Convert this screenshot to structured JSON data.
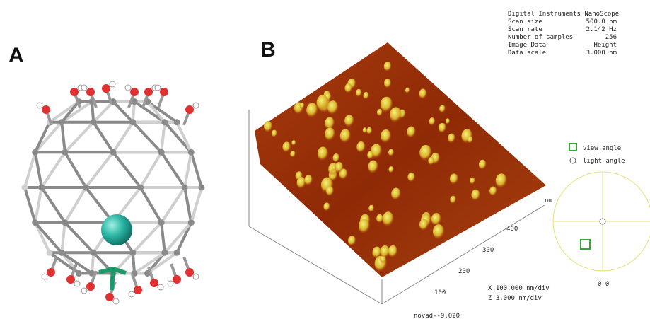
{
  "panel_a": {
    "label": "A"
  },
  "panel_b": {
    "label": "B",
    "info": {
      "title": "Digital Instruments NanoScope",
      "rows": [
        [
          "Scan size",
          "500.0 nm"
        ],
        [
          "Scan rate",
          "2.142 Hz"
        ],
        [
          "Number of samples",
          "256"
        ],
        [
          "Image Data",
          "Height"
        ],
        [
          "Data scale",
          "3.000 nm"
        ]
      ]
    },
    "axis_ticks": [
      100,
      200,
      300,
      400
    ],
    "axis_unit": "nm",
    "scale_x": "X  100.000 nm/div",
    "scale_z": "Z  3.000 nm/div",
    "file_name": "novad--9.020",
    "legend": {
      "view": "view angle",
      "light": "light angle"
    },
    "angles": "0 0"
  }
}
